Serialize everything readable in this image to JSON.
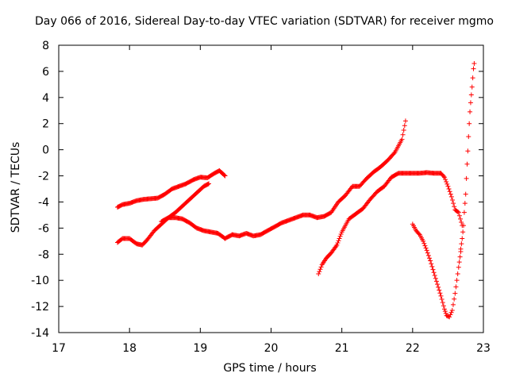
{
  "chart_data": {
    "type": "scatter",
    "title": "Day 066 of 2016, Sidereal Day-to-day VTEC variation (SDTVAR) for receiver mgmo",
    "xlabel": "GPS time / hours",
    "ylabel": "SDTVAR / TECUs",
    "xlim": [
      17,
      23
    ],
    "ylim": [
      -14,
      8
    ],
    "xticks": [
      17,
      18,
      19,
      20,
      21,
      22,
      23
    ],
    "yticks": [
      -14,
      -12,
      -10,
      -8,
      -6,
      -4,
      -2,
      0,
      2,
      4,
      6,
      8
    ],
    "grid": false,
    "marker": "plus",
    "color": "#ff0000",
    "series": [
      {
        "x": [
          17.83,
          17.9,
          18.0,
          18.1,
          18.2,
          18.3,
          18.4,
          18.5,
          18.6,
          18.7,
          18.8,
          18.9,
          19.0,
          19.1,
          19.2,
          19.27,
          19.35
        ],
        "y": [
          -4.4,
          -4.2,
          -4.1,
          -3.9,
          -3.8,
          -3.75,
          -3.7,
          -3.4,
          -3.0,
          -2.8,
          -2.6,
          -2.3,
          -2.1,
          -2.15,
          -1.8,
          -1.6,
          -2.0
        ]
      },
      {
        "x": [
          17.83,
          17.9,
          18.0,
          18.1,
          18.18,
          18.25,
          18.35,
          18.45,
          18.55,
          18.65,
          18.75,
          18.85,
          18.95,
          19.05,
          19.12
        ],
        "y": [
          -7.1,
          -6.8,
          -6.8,
          -7.2,
          -7.3,
          -6.9,
          -6.2,
          -5.7,
          -5.2,
          -4.8,
          -4.3,
          -3.8,
          -3.3,
          -2.8,
          -2.6
        ]
      },
      {
        "x": [
          18.45,
          18.55,
          18.65,
          18.75,
          18.85,
          18.95,
          19.05,
          19.15,
          19.25,
          19.35,
          19.45,
          19.55,
          19.65,
          19.75,
          19.85,
          19.95,
          20.05,
          20.15,
          20.25,
          20.35,
          20.45,
          20.55,
          20.65,
          20.75,
          20.85,
          20.95,
          21.05,
          21.15,
          21.25,
          21.35,
          21.45,
          21.55,
          21.65,
          21.75,
          21.85,
          21.9
        ],
        "y": [
          -5.5,
          -5.2,
          -5.2,
          -5.3,
          -5.6,
          -6.0,
          -6.2,
          -6.3,
          -6.4,
          -6.8,
          -6.5,
          -6.6,
          -6.4,
          -6.6,
          -6.5,
          -6.2,
          -5.9,
          -5.6,
          -5.4,
          -5.2,
          -5.0,
          -5.0,
          -5.2,
          -5.1,
          -4.8,
          -4.0,
          -3.5,
          -2.8,
          -2.8,
          -2.2,
          -1.7,
          -1.3,
          -0.8,
          -0.2,
          0.8,
          2.2
        ]
      },
      {
        "x": [
          20.67,
          20.72,
          20.78,
          20.85,
          20.93,
          21.0,
          21.1,
          21.2,
          21.3,
          21.4,
          21.5,
          21.6,
          21.7,
          21.8,
          21.9,
          22.0,
          22.1,
          22.2,
          22.3,
          22.4,
          22.45,
          22.5,
          22.55,
          22.6,
          22.65,
          22.7
        ],
        "y": [
          -9.5,
          -8.8,
          -8.3,
          -7.9,
          -7.3,
          -6.3,
          -5.3,
          -4.9,
          -4.5,
          -3.8,
          -3.2,
          -2.8,
          -2.1,
          -1.8,
          -1.8,
          -1.8,
          -1.8,
          -1.75,
          -1.8,
          -1.8,
          -2.1,
          -2.8,
          -3.6,
          -4.6,
          -4.8,
          -5.8
        ]
      },
      {
        "x": [
          22.0,
          22.05,
          22.1,
          22.15,
          22.2,
          22.25,
          22.3,
          22.35,
          22.4,
          22.45,
          22.48,
          22.52,
          22.56,
          22.6,
          22.65,
          22.68
        ],
        "y": [
          -5.7,
          -6.2,
          -6.5,
          -7.0,
          -7.7,
          -8.5,
          -9.4,
          -10.3,
          -11.2,
          -12.2,
          -12.7,
          -12.8,
          -12.3,
          -11.0,
          -9.0,
          -7.8
        ]
      },
      {
        "x": [
          22.68,
          22.7,
          22.72,
          22.73,
          22.75,
          22.76,
          22.77,
          22.78,
          22.79,
          22.8,
          22.81,
          22.82,
          22.83,
          22.84,
          22.85,
          22.86,
          22.87
        ],
        "y": [
          -7.6,
          -6.8,
          -5.8,
          -4.8,
          -3.4,
          -2.2,
          -1.1,
          -0.1,
          1.0,
          2.0,
          2.9,
          3.6,
          4.2,
          4.8,
          5.5,
          6.2,
          6.6
        ]
      }
    ]
  }
}
